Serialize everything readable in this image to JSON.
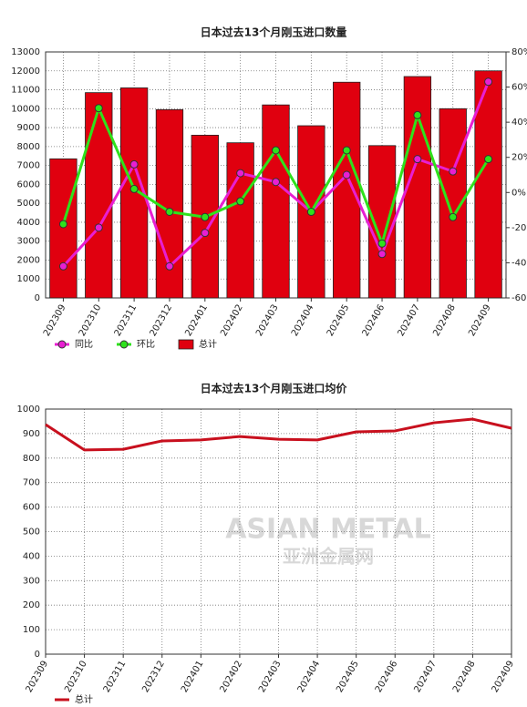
{
  "chart_data": [
    {
      "type": "bar",
      "title": "日本过去13个月刚玉进口数量",
      "categories": [
        "202309",
        "202310",
        "202311",
        "202312",
        "202401",
        "202402",
        "202403",
        "202404",
        "202405",
        "202406",
        "202407",
        "202408",
        "202409"
      ],
      "ylim": [
        0,
        13000
      ],
      "yticks": [
        0,
        1000,
        2000,
        3000,
        4000,
        5000,
        6000,
        7000,
        8000,
        9000,
        10000,
        11000,
        12000,
        13000
      ],
      "y2lim": [
        -60,
        80
      ],
      "y2ticks": [
        {
          "value": -60,
          "label": "-60%"
        },
        {
          "value": -40,
          "label": "-40%"
        },
        {
          "value": -20,
          "label": "-20%"
        },
        {
          "value": 0,
          "label": "0%"
        },
        {
          "value": 20,
          "label": "20%"
        },
        {
          "value": 40,
          "label": "40%"
        },
        {
          "value": 60,
          "label": "60%"
        },
        {
          "value": 80,
          "label": "80%"
        }
      ],
      "grid": true,
      "series": [
        {
          "name": "同比",
          "type": "line",
          "axis": "y2",
          "color": "#e81fd2",
          "values": [
            -42,
            -20,
            16,
            -42,
            -23,
            11,
            6,
            -11,
            10,
            -35,
            19,
            12,
            63
          ]
        },
        {
          "name": "环比",
          "type": "line",
          "axis": "y2",
          "color": "#2ee21c",
          "values": [
            -18,
            48,
            2,
            -11,
            -14,
            -5,
            24,
            -11,
            24,
            -29,
            44,
            -14,
            19
          ]
        },
        {
          "name": "总计",
          "type": "bar",
          "color": "#e0000f",
          "values": [
            7350,
            10850,
            11100,
            9950,
            8600,
            8200,
            10200,
            9100,
            11400,
            8050,
            11700,
            10000,
            12000
          ]
        }
      ]
    },
    {
      "type": "line",
      "title": "日本过去13个月刚玉进口均价",
      "categories": [
        "202309",
        "202310",
        "202311",
        "202312",
        "202401",
        "202402",
        "202403",
        "202404",
        "202405",
        "202406",
        "202407",
        "202408",
        "202409"
      ],
      "ylim": [
        0,
        1000
      ],
      "yticks": [
        0,
        100,
        200,
        300,
        400,
        500,
        600,
        700,
        800,
        900,
        1000
      ],
      "grid": true,
      "series": [
        {
          "name": "总计",
          "color": "#c8101e",
          "values": [
            937,
            833,
            836,
            870,
            874,
            888,
            877,
            874,
            907,
            911,
            944,
            959,
            922
          ]
        }
      ],
      "watermark": {
        "text": "ASIAN METAL",
        "subtext": "亚洲金属网"
      }
    }
  ]
}
